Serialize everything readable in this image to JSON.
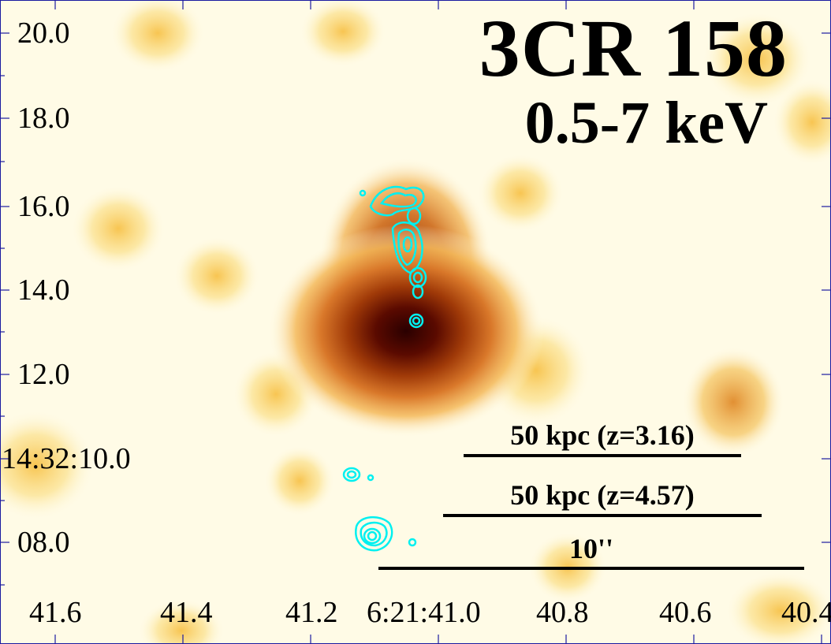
{
  "title": "3CR 158",
  "energy_band": "0.5-7 keV",
  "dec_ticks": [
    "20.0",
    "18.0",
    "16.0",
    "14.0",
    "12.0",
    "14:32:10.0",
    "08.0"
  ],
  "ra_ticks": [
    "41.6",
    "41.4",
    "41.2",
    "6:21:41.0",
    "40.8",
    "40.6",
    "40.4"
  ],
  "scale_bars": [
    {
      "label": "50 kpc (z=3.16)"
    },
    {
      "label": "50 kpc (z=4.57)"
    },
    {
      "label": "10''"
    }
  ],
  "colors": {
    "background": "#fffbe6",
    "contour": "#00f0f0",
    "text": "#000000",
    "frame": "#1a1aa0"
  }
}
